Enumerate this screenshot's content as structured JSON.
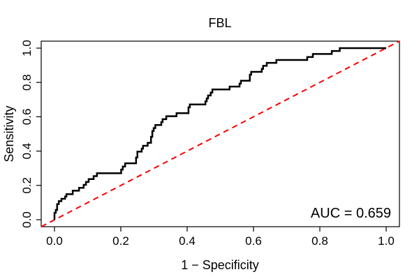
{
  "figure": {
    "title": "FBL",
    "x_axis_label": "1 − Specificity",
    "y_axis_label": "Sensitivity",
    "auc_text": "AUC = 0.659"
  },
  "chart_data": {
    "type": "line",
    "subtype": "roc-step-curve",
    "title": "FBL",
    "xlabel": "1 − Specificity",
    "ylabel": "Sensitivity",
    "xlim": [
      0,
      1
    ],
    "ylim": [
      0,
      1
    ],
    "x_ticks": [
      0,
      0.2,
      0.4,
      0.6,
      0.8,
      1.0
    ],
    "y_ticks": [
      0,
      0.2,
      0.4,
      0.6,
      0.8,
      1.0
    ],
    "tick_label_format": "one_decimal",
    "grid": false,
    "legend": "none",
    "annotations": [
      {
        "text": "AUC = 0.659",
        "value": 0.659,
        "position": "bottom-right"
      }
    ],
    "series": [
      {
        "name": "ROC curve",
        "color": "#000000",
        "style": "solid",
        "line_width": 2.5,
        "points": [
          [
            0.0,
            0.0
          ],
          [
            0.0,
            0.04
          ],
          [
            0.004,
            0.04
          ],
          [
            0.004,
            0.057
          ],
          [
            0.008,
            0.057
          ],
          [
            0.008,
            0.091
          ],
          [
            0.013,
            0.091
          ],
          [
            0.013,
            0.108
          ],
          [
            0.021,
            0.108
          ],
          [
            0.021,
            0.122
          ],
          [
            0.032,
            0.122
          ],
          [
            0.032,
            0.135
          ],
          [
            0.036,
            0.135
          ],
          [
            0.036,
            0.149
          ],
          [
            0.055,
            0.149
          ],
          [
            0.055,
            0.169
          ],
          [
            0.074,
            0.169
          ],
          [
            0.074,
            0.186
          ],
          [
            0.088,
            0.186
          ],
          [
            0.088,
            0.203
          ],
          [
            0.095,
            0.203
          ],
          [
            0.095,
            0.22
          ],
          [
            0.103,
            0.22
          ],
          [
            0.103,
            0.237
          ],
          [
            0.118,
            0.237
          ],
          [
            0.118,
            0.254
          ],
          [
            0.128,
            0.254
          ],
          [
            0.128,
            0.271
          ],
          [
            0.134,
            0.271
          ],
          [
            0.201,
            0.271
          ],
          [
            0.201,
            0.292
          ],
          [
            0.206,
            0.292
          ],
          [
            0.206,
            0.31
          ],
          [
            0.213,
            0.31
          ],
          [
            0.213,
            0.329
          ],
          [
            0.246,
            0.329
          ],
          [
            0.246,
            0.363
          ],
          [
            0.25,
            0.363
          ],
          [
            0.25,
            0.397
          ],
          [
            0.263,
            0.397
          ],
          [
            0.263,
            0.414
          ],
          [
            0.267,
            0.414
          ],
          [
            0.267,
            0.431
          ],
          [
            0.281,
            0.431
          ],
          [
            0.281,
            0.448
          ],
          [
            0.291,
            0.448
          ],
          [
            0.291,
            0.483
          ],
          [
            0.295,
            0.483
          ],
          [
            0.295,
            0.517
          ],
          [
            0.299,
            0.517
          ],
          [
            0.299,
            0.534
          ],
          [
            0.304,
            0.534
          ],
          [
            0.304,
            0.552
          ],
          [
            0.322,
            0.552
          ],
          [
            0.322,
            0.569
          ],
          [
            0.326,
            0.569
          ],
          [
            0.326,
            0.586
          ],
          [
            0.337,
            0.586
          ],
          [
            0.337,
            0.603
          ],
          [
            0.368,
            0.603
          ],
          [
            0.368,
            0.621
          ],
          [
            0.404,
            0.621
          ],
          [
            0.404,
            0.655
          ],
          [
            0.408,
            0.655
          ],
          [
            0.408,
            0.672
          ],
          [
            0.455,
            0.672
          ],
          [
            0.455,
            0.69
          ],
          [
            0.459,
            0.69
          ],
          [
            0.459,
            0.707
          ],
          [
            0.463,
            0.707
          ],
          [
            0.463,
            0.724
          ],
          [
            0.471,
            0.724
          ],
          [
            0.471,
            0.741
          ],
          [
            0.476,
            0.741
          ],
          [
            0.476,
            0.759
          ],
          [
            0.528,
            0.759
          ],
          [
            0.528,
            0.776
          ],
          [
            0.558,
            0.776
          ],
          [
            0.558,
            0.793
          ],
          [
            0.562,
            0.793
          ],
          [
            0.562,
            0.81
          ],
          [
            0.589,
            0.81
          ],
          [
            0.589,
            0.845
          ],
          [
            0.593,
            0.845
          ],
          [
            0.593,
            0.862
          ],
          [
            0.625,
            0.862
          ],
          [
            0.625,
            0.879
          ],
          [
            0.629,
            0.879
          ],
          [
            0.629,
            0.897
          ],
          [
            0.64,
            0.897
          ],
          [
            0.64,
            0.914
          ],
          [
            0.669,
            0.914
          ],
          [
            0.669,
            0.931
          ],
          [
            0.762,
            0.931
          ],
          [
            0.762,
            0.948
          ],
          [
            0.779,
            0.948
          ],
          [
            0.779,
            0.966
          ],
          [
            0.836,
            0.966
          ],
          [
            0.836,
            0.983
          ],
          [
            0.86,
            0.983
          ],
          [
            0.86,
            1.0
          ],
          [
            1.0,
            1.0
          ]
        ]
      },
      {
        "name": "chance diagonal",
        "color": "#ff0000",
        "style": "dashed",
        "line_width": 2,
        "points": [
          [
            0,
            0
          ],
          [
            1,
            1
          ]
        ]
      }
    ]
  }
}
